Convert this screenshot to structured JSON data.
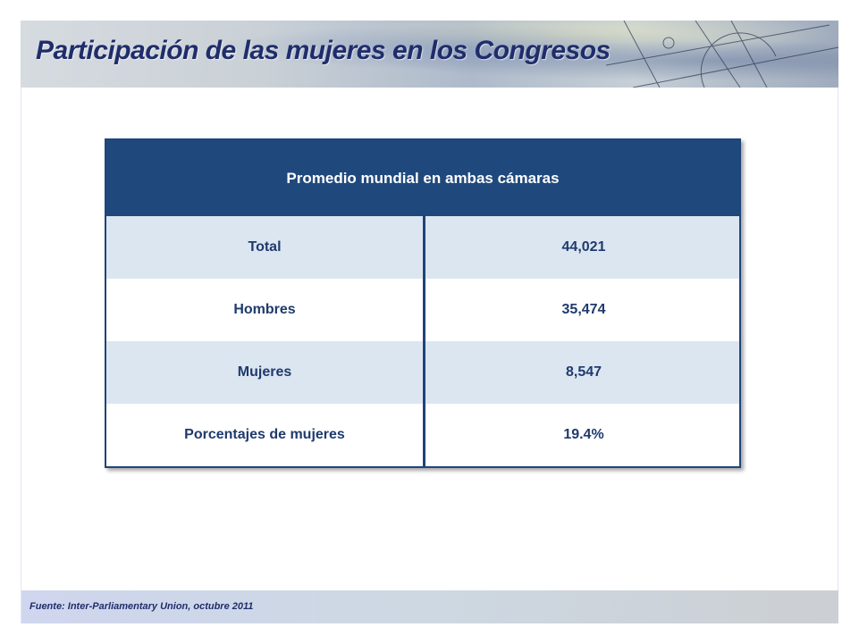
{
  "header": {
    "title": "Participación de las mujeres en los Congresos"
  },
  "table": {
    "heading": "Promedio mundial en ambas cámaras",
    "rows": [
      {
        "label": "Total",
        "value": "44,021"
      },
      {
        "label": "Hombres",
        "value": "35,474"
      },
      {
        "label": "Mujeres",
        "value": "8,547"
      },
      {
        "label": "Porcentajes de mujeres",
        "value": "19.4%"
      }
    ]
  },
  "footer": {
    "source": "Fuente:  Inter-Parliamentary Union, octubre 2011"
  }
}
